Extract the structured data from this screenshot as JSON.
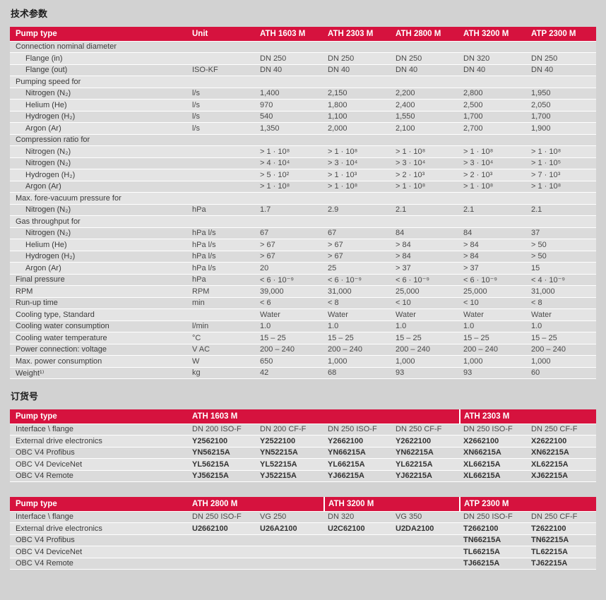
{
  "sections": {
    "tech": {
      "title": "技术参数"
    },
    "order": {
      "title": "订货号"
    }
  },
  "colors": {
    "header_red": "#D6123E",
    "page_bg": "#D2D2D2",
    "row_light": "#E4E4E4",
    "row_dark": "#DBDBDB",
    "separator": "#FFFFFF"
  },
  "tech_table": {
    "columns": [
      "Pump type",
      "Unit",
      "ATH 1603 M",
      "ATH 2303 M",
      "ATH 2800 M",
      "ATH 3200 M",
      "ATP 2300 M"
    ],
    "rows": [
      {
        "label": "Connection nominal diameter",
        "group": true
      },
      {
        "label": "Flange (in)",
        "indent": true,
        "unit": "",
        "values": [
          "DN 250",
          "DN 250",
          "DN 250",
          "DN 320",
          "DN 250"
        ]
      },
      {
        "label": "Flange (out)",
        "indent": true,
        "unit": "ISO-KF",
        "values": [
          "DN 40",
          "DN 40",
          "DN 40",
          "DN 40",
          "DN 40"
        ]
      },
      {
        "label": "Pumping speed for",
        "group": true
      },
      {
        "label": "Nitrogen (N₂)",
        "indent": true,
        "unit": "l/s",
        "values": [
          "1,400",
          "2,150",
          "2,200",
          "2,800",
          "1,950"
        ]
      },
      {
        "label": "Helium (He)",
        "indent": true,
        "unit": "l/s",
        "values": [
          "970",
          "1,800",
          "2,400",
          "2,500",
          "2,050"
        ]
      },
      {
        "label": "Hydrogen (H₂)",
        "indent": true,
        "unit": "l/s",
        "values": [
          "540",
          "1,100",
          "1,550",
          "1,700",
          "1,700"
        ]
      },
      {
        "label": "Argon (Ar)",
        "indent": true,
        "unit": "l/s",
        "values": [
          "1,350",
          "2,000",
          "2,100",
          "2,700",
          "1,900"
        ]
      },
      {
        "label": "Compression ratio for",
        "group": true
      },
      {
        "label": "Nitrogen (N₂)",
        "indent": true,
        "unit": "",
        "values": [
          "> 1 · 10⁸",
          "> 1 · 10⁸",
          "> 1 · 10⁸",
          "> 1 · 10⁸",
          "> 1 · 10⁸"
        ]
      },
      {
        "label": "Nitrogen (N₂)",
        "indent": true,
        "unit": "",
        "values": [
          "> 4 · 10⁴",
          "> 3 · 10⁴",
          "> 3 · 10⁴",
          "> 3 · 10⁴",
          "> 1 · 10⁵"
        ]
      },
      {
        "label": "Hydrogen (H₂)",
        "indent": true,
        "unit": "",
        "values": [
          "> 5 · 10²",
          "> 1 · 10³",
          "> 2 · 10³",
          "> 2 · 10³",
          "> 7 · 10³"
        ]
      },
      {
        "label": "Argon (Ar)",
        "indent": true,
        "unit": "",
        "values": [
          "> 1 · 10⁸",
          "> 1 · 10⁸",
          "> 1 · 10⁸",
          "> 1 · 10⁸",
          "> 1 · 10⁸"
        ]
      },
      {
        "label": "Max. fore-vacuum pressure for",
        "group": true
      },
      {
        "label": "Nitrogen (N₂)",
        "indent": true,
        "unit": "hPa",
        "values": [
          "1.7",
          "2.9",
          "2.1",
          "2.1",
          "2.1"
        ]
      },
      {
        "label": "Gas throughput for",
        "group": true
      },
      {
        "label": "Nitrogen (N₂)",
        "indent": true,
        "unit": "hPa l/s",
        "values": [
          "67",
          "67",
          "84",
          "84",
          "37"
        ]
      },
      {
        "label": "Helium (He)",
        "indent": true,
        "unit": "hPa l/s",
        "values": [
          "> 67",
          "> 67",
          "> 84",
          "> 84",
          "> 50"
        ]
      },
      {
        "label": "Hydrogen (H₂)",
        "indent": true,
        "unit": "hPa l/s",
        "values": [
          "> 67",
          "> 67",
          "> 84",
          "> 84",
          "> 50"
        ]
      },
      {
        "label": "Argon (Ar)",
        "indent": true,
        "unit": "hPa l/s",
        "values": [
          "20",
          "25",
          "> 37",
          "> 37",
          "15"
        ]
      },
      {
        "label": "Final pressure",
        "unit": "hPa",
        "values": [
          "< 6 · 10⁻⁹",
          "< 6 · 10⁻⁹",
          "< 6 · 10⁻⁹",
          "< 6 · 10⁻⁹",
          "< 4 · 10⁻⁹"
        ]
      },
      {
        "label": "RPM",
        "unit": "RPM",
        "values": [
          "39,000",
          "31,000",
          "25,000",
          "25,000",
          "31,000"
        ]
      },
      {
        "label": "Run-up time",
        "unit": "min",
        "values": [
          "< 6",
          "< 8",
          "< 10",
          "< 10",
          "< 8"
        ]
      },
      {
        "label": "Cooling type, Standard",
        "unit": "",
        "values": [
          "Water",
          "Water",
          "Water",
          "Water",
          "Water"
        ]
      },
      {
        "label": "Cooling water consumption",
        "unit": "l/min",
        "values": [
          "1.0",
          "1.0",
          "1.0",
          "1.0",
          "1.0"
        ]
      },
      {
        "label": "Cooling water temperature",
        "unit": "°C",
        "values": [
          "15 – 25",
          "15 – 25",
          "15 – 25",
          "15 – 25",
          "15 – 25"
        ]
      },
      {
        "label": "Power connection: voltage",
        "unit": "V AC",
        "values": [
          "200 – 240",
          "200 – 240",
          "200 – 240",
          "200 – 240",
          "200 – 240"
        ]
      },
      {
        "label": "Max. power consumption",
        "unit": "W",
        "values": [
          "650",
          "1,000",
          "1,000",
          "1,000",
          "1,000"
        ]
      },
      {
        "label": "Weight¹⁾",
        "unit": "kg",
        "values": [
          "42",
          "68",
          "93",
          "93",
          "60"
        ]
      }
    ]
  },
  "order_tables": [
    {
      "header": {
        "label": "Pump type",
        "groups": [
          {
            "label": "ATH 1603 M",
            "span": 4
          },
          {
            "label": "ATH 2303 M",
            "span": 2
          }
        ]
      },
      "rows": [
        {
          "label": "Interface \\ flange",
          "bold": false,
          "values": [
            "DN 200 ISO-F",
            "DN 200 CF-F",
            "DN 250 ISO-F",
            "DN 250 CF-F",
            "DN 250 ISO-F",
            "DN 250 CF-F"
          ]
        },
        {
          "label": "External drive electronics",
          "bold": true,
          "values": [
            "Y2562100",
            "Y2522100",
            "Y2662100",
            "Y2622100",
            "X2662100",
            "X2622100"
          ]
        },
        {
          "label": "OBC V4 Profibus",
          "bold": true,
          "values": [
            "YN56215A",
            "YN52215A",
            "YN66215A",
            "YN62215A",
            "XN66215A",
            "XN62215A"
          ]
        },
        {
          "label": "OBC V4 DeviceNet",
          "bold": true,
          "values": [
            "YL56215A",
            "YL52215A",
            "YL66215A",
            "YL62215A",
            "XL66215A",
            "XL62215A"
          ]
        },
        {
          "label": "OBC V4 Remote",
          "bold": true,
          "values": [
            "YJ56215A",
            "YJ52215A",
            "YJ66215A",
            "YJ62215A",
            "XL66215A",
            "XJ62215A"
          ]
        }
      ]
    },
    {
      "header": {
        "label": "Pump type",
        "groups": [
          {
            "label": "ATH 2800 M",
            "span": 2
          },
          {
            "label": "ATH 3200 M",
            "span": 2
          },
          {
            "label": "ATP 2300 M",
            "span": 2
          }
        ]
      },
      "rows": [
        {
          "label": "Interface \\ flange",
          "bold": false,
          "values": [
            "DN 250 ISO-F",
            "VG 250",
            "DN 320",
            "VG 350",
            "DN 250 ISO-F",
            "DN 250 CF-F"
          ]
        },
        {
          "label": "External drive electronics",
          "bold": true,
          "values": [
            "U2662100",
            "U26A2100",
            "U2C62100",
            "U2DA2100",
            "T2662100",
            "T2622100"
          ]
        },
        {
          "label": "OBC V4 Profibus",
          "bold": true,
          "values": [
            "",
            "",
            "",
            "",
            "TN66215A",
            "TN62215A"
          ]
        },
        {
          "label": "OBC V4 DeviceNet",
          "bold": true,
          "values": [
            "",
            "",
            "",
            "",
            "TL66215A",
            "TL62215A"
          ]
        },
        {
          "label": "OBC V4 Remote",
          "bold": true,
          "values": [
            "",
            "",
            "",
            "",
            "TJ66215A",
            "TJ62215A"
          ]
        }
      ]
    }
  ]
}
